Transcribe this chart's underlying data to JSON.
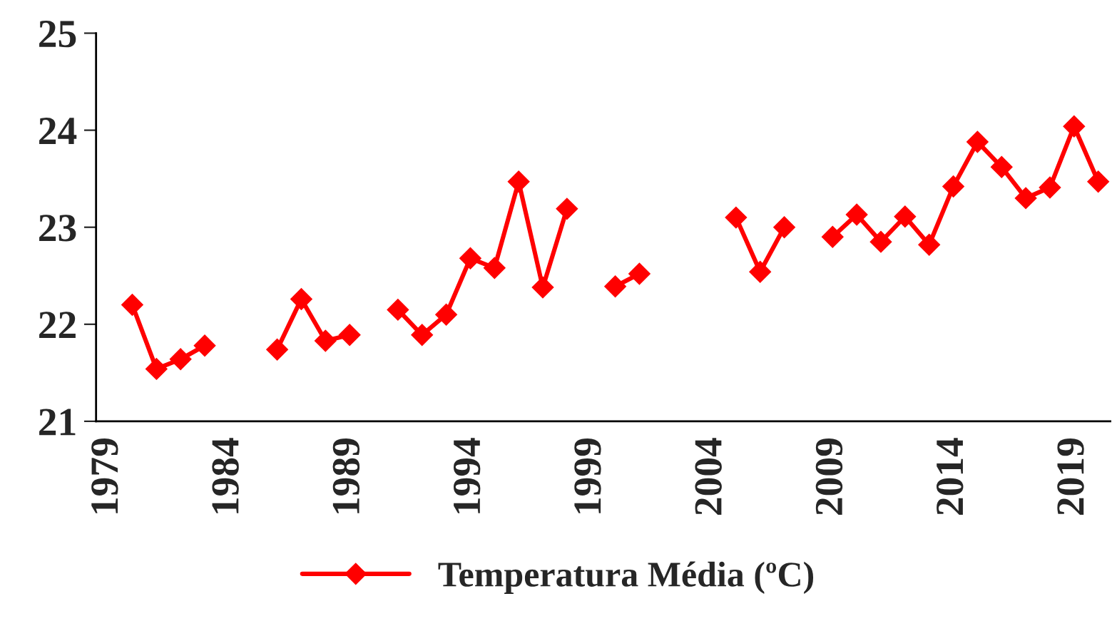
{
  "chart_data": {
    "type": "line",
    "categories": [
      "1979",
      null,
      null,
      null,
      null,
      "1984",
      null,
      null,
      null,
      null,
      "1989",
      null,
      null,
      null,
      null,
      "1994",
      null,
      null,
      null,
      null,
      "1999",
      null,
      null,
      null,
      null,
      "2004",
      null,
      null,
      null,
      null,
      "2009",
      null,
      null,
      null,
      null,
      "2014",
      null,
      null,
      null,
      null,
      "2019",
      null
    ],
    "series": [
      {
        "name": "Temperatura Média (ºC)",
        "color": "#ff0000",
        "values": [
          null,
          22.2,
          21.54,
          21.64,
          21.78,
          null,
          null,
          21.74,
          22.26,
          21.83,
          21.89,
          null,
          22.15,
          21.89,
          22.1,
          22.68,
          22.58,
          23.47,
          22.38,
          23.19,
          null,
          22.39,
          22.52,
          null,
          null,
          null,
          23.1,
          22.54,
          23.0,
          null,
          22.9,
          23.13,
          22.85,
          23.11,
          22.82,
          23.42,
          23.88,
          23.62,
          23.3,
          23.41,
          24.04,
          23.47
        ]
      }
    ],
    "ylim": [
      21,
      25
    ],
    "yticks": [
      21,
      22,
      23,
      24,
      25
    ],
    "marker": "diamond",
    "line_style": "solid",
    "grid": false,
    "legend": "bottom"
  }
}
